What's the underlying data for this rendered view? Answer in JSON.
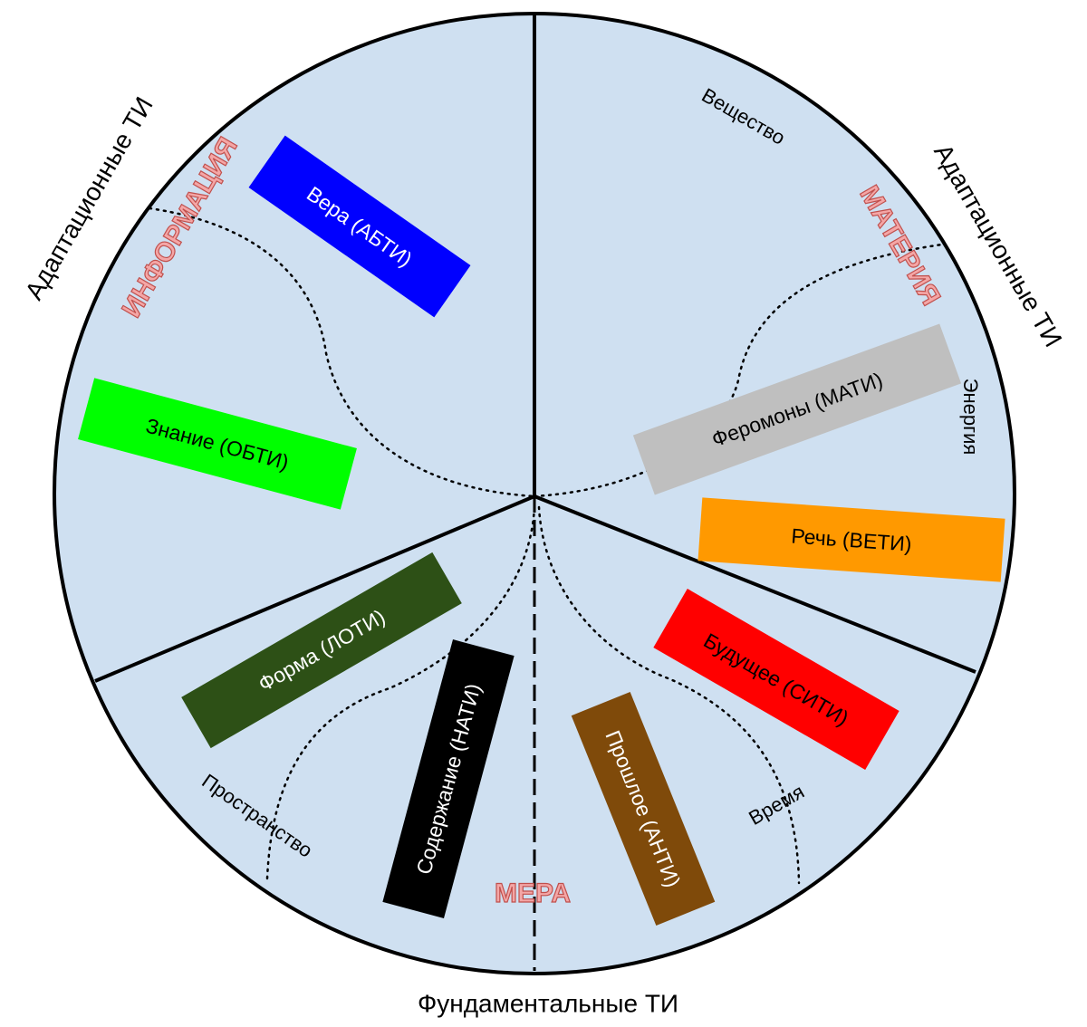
{
  "groups": {
    "left": "Адаптационные ТИ",
    "right": "Адаптационные ТИ",
    "bottom": "Фундаментальные ТИ"
  },
  "realms": {
    "information": "ИНФОРМАЦИЯ",
    "matter": "МАТЕРИЯ",
    "measure": "МЕРА"
  },
  "aspects": {
    "substance": "Вещество",
    "energy": "Энергия",
    "time": "Время",
    "space": "Пространство"
  },
  "boxes": [
    {
      "label": "Вера (АБТИ)"
    },
    {
      "label": "Знание (ОБТИ)"
    },
    {
      "label": "Феромоны (МАТИ)"
    },
    {
      "label": "Речь (ВЕТИ)"
    },
    {
      "label": "Будущее (СИТИ)"
    },
    {
      "label": "Форма (ЛОТИ)"
    },
    {
      "label": "Содержание (НАТИ)"
    },
    {
      "label": "Прошлое (АНТИ)"
    }
  ]
}
